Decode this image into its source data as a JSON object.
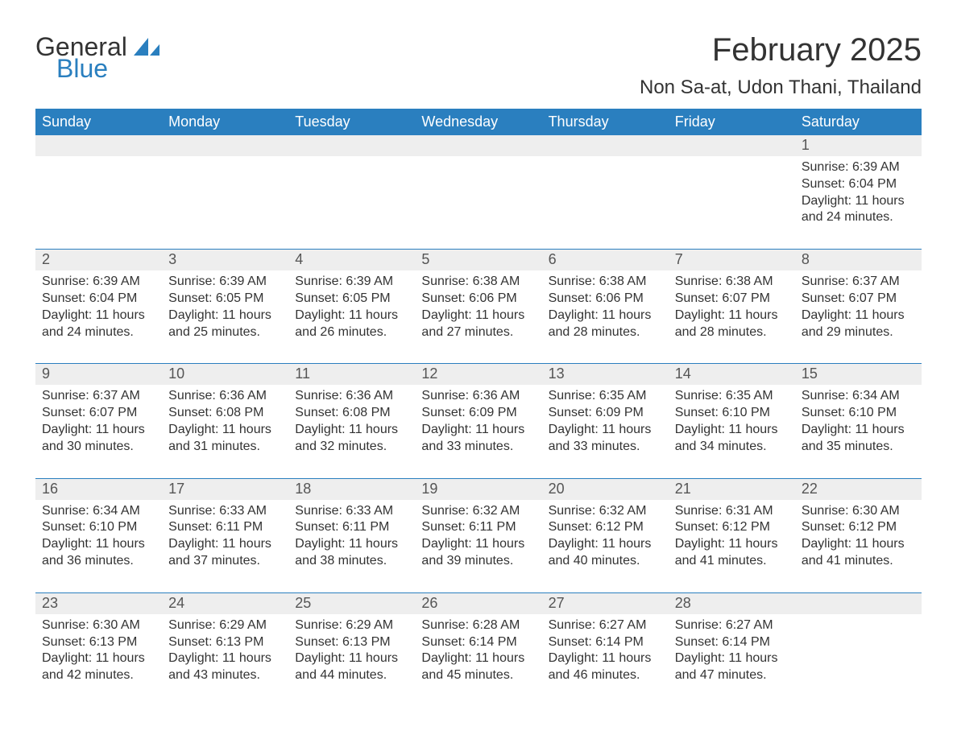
{
  "logo": {
    "text1": "General",
    "text2": "Blue"
  },
  "title": "February 2025",
  "location": "Non Sa-at, Udon Thani, Thailand",
  "colors": {
    "header_bg": "#2a7fbf",
    "header_text": "#ffffff",
    "daynum_bg": "#eeeeee",
    "daynum_text": "#555555",
    "body_text": "#333333",
    "page_bg": "#ffffff",
    "logo_gray": "#333333",
    "logo_blue": "#2a7fbf"
  },
  "day_headers": [
    "Sunday",
    "Monday",
    "Tuesday",
    "Wednesday",
    "Thursday",
    "Friday",
    "Saturday"
  ],
  "weeks": [
    [
      null,
      null,
      null,
      null,
      null,
      null,
      {
        "num": "1",
        "sunrise": "Sunrise: 6:39 AM",
        "sunset": "Sunset: 6:04 PM",
        "daylight": "Daylight: 11 hours and 24 minutes."
      }
    ],
    [
      {
        "num": "2",
        "sunrise": "Sunrise: 6:39 AM",
        "sunset": "Sunset: 6:04 PM",
        "daylight": "Daylight: 11 hours and 24 minutes."
      },
      {
        "num": "3",
        "sunrise": "Sunrise: 6:39 AM",
        "sunset": "Sunset: 6:05 PM",
        "daylight": "Daylight: 11 hours and 25 minutes."
      },
      {
        "num": "4",
        "sunrise": "Sunrise: 6:39 AM",
        "sunset": "Sunset: 6:05 PM",
        "daylight": "Daylight: 11 hours and 26 minutes."
      },
      {
        "num": "5",
        "sunrise": "Sunrise: 6:38 AM",
        "sunset": "Sunset: 6:06 PM",
        "daylight": "Daylight: 11 hours and 27 minutes."
      },
      {
        "num": "6",
        "sunrise": "Sunrise: 6:38 AM",
        "sunset": "Sunset: 6:06 PM",
        "daylight": "Daylight: 11 hours and 28 minutes."
      },
      {
        "num": "7",
        "sunrise": "Sunrise: 6:38 AM",
        "sunset": "Sunset: 6:07 PM",
        "daylight": "Daylight: 11 hours and 28 minutes."
      },
      {
        "num": "8",
        "sunrise": "Sunrise: 6:37 AM",
        "sunset": "Sunset: 6:07 PM",
        "daylight": "Daylight: 11 hours and 29 minutes."
      }
    ],
    [
      {
        "num": "9",
        "sunrise": "Sunrise: 6:37 AM",
        "sunset": "Sunset: 6:07 PM",
        "daylight": "Daylight: 11 hours and 30 minutes."
      },
      {
        "num": "10",
        "sunrise": "Sunrise: 6:36 AM",
        "sunset": "Sunset: 6:08 PM",
        "daylight": "Daylight: 11 hours and 31 minutes."
      },
      {
        "num": "11",
        "sunrise": "Sunrise: 6:36 AM",
        "sunset": "Sunset: 6:08 PM",
        "daylight": "Daylight: 11 hours and 32 minutes."
      },
      {
        "num": "12",
        "sunrise": "Sunrise: 6:36 AM",
        "sunset": "Sunset: 6:09 PM",
        "daylight": "Daylight: 11 hours and 33 minutes."
      },
      {
        "num": "13",
        "sunrise": "Sunrise: 6:35 AM",
        "sunset": "Sunset: 6:09 PM",
        "daylight": "Daylight: 11 hours and 33 minutes."
      },
      {
        "num": "14",
        "sunrise": "Sunrise: 6:35 AM",
        "sunset": "Sunset: 6:10 PM",
        "daylight": "Daylight: 11 hours and 34 minutes."
      },
      {
        "num": "15",
        "sunrise": "Sunrise: 6:34 AM",
        "sunset": "Sunset: 6:10 PM",
        "daylight": "Daylight: 11 hours and 35 minutes."
      }
    ],
    [
      {
        "num": "16",
        "sunrise": "Sunrise: 6:34 AM",
        "sunset": "Sunset: 6:10 PM",
        "daylight": "Daylight: 11 hours and 36 minutes."
      },
      {
        "num": "17",
        "sunrise": "Sunrise: 6:33 AM",
        "sunset": "Sunset: 6:11 PM",
        "daylight": "Daylight: 11 hours and 37 minutes."
      },
      {
        "num": "18",
        "sunrise": "Sunrise: 6:33 AM",
        "sunset": "Sunset: 6:11 PM",
        "daylight": "Daylight: 11 hours and 38 minutes."
      },
      {
        "num": "19",
        "sunrise": "Sunrise: 6:32 AM",
        "sunset": "Sunset: 6:11 PM",
        "daylight": "Daylight: 11 hours and 39 minutes."
      },
      {
        "num": "20",
        "sunrise": "Sunrise: 6:32 AM",
        "sunset": "Sunset: 6:12 PM",
        "daylight": "Daylight: 11 hours and 40 minutes."
      },
      {
        "num": "21",
        "sunrise": "Sunrise: 6:31 AM",
        "sunset": "Sunset: 6:12 PM",
        "daylight": "Daylight: 11 hours and 41 minutes."
      },
      {
        "num": "22",
        "sunrise": "Sunrise: 6:30 AM",
        "sunset": "Sunset: 6:12 PM",
        "daylight": "Daylight: 11 hours and 41 minutes."
      }
    ],
    [
      {
        "num": "23",
        "sunrise": "Sunrise: 6:30 AM",
        "sunset": "Sunset: 6:13 PM",
        "daylight": "Daylight: 11 hours and 42 minutes."
      },
      {
        "num": "24",
        "sunrise": "Sunrise: 6:29 AM",
        "sunset": "Sunset: 6:13 PM",
        "daylight": "Daylight: 11 hours and 43 minutes."
      },
      {
        "num": "25",
        "sunrise": "Sunrise: 6:29 AM",
        "sunset": "Sunset: 6:13 PM",
        "daylight": "Daylight: 11 hours and 44 minutes."
      },
      {
        "num": "26",
        "sunrise": "Sunrise: 6:28 AM",
        "sunset": "Sunset: 6:14 PM",
        "daylight": "Daylight: 11 hours and 45 minutes."
      },
      {
        "num": "27",
        "sunrise": "Sunrise: 6:27 AM",
        "sunset": "Sunset: 6:14 PM",
        "daylight": "Daylight: 11 hours and 46 minutes."
      },
      {
        "num": "28",
        "sunrise": "Sunrise: 6:27 AM",
        "sunset": "Sunset: 6:14 PM",
        "daylight": "Daylight: 11 hours and 47 minutes."
      },
      null
    ]
  ]
}
